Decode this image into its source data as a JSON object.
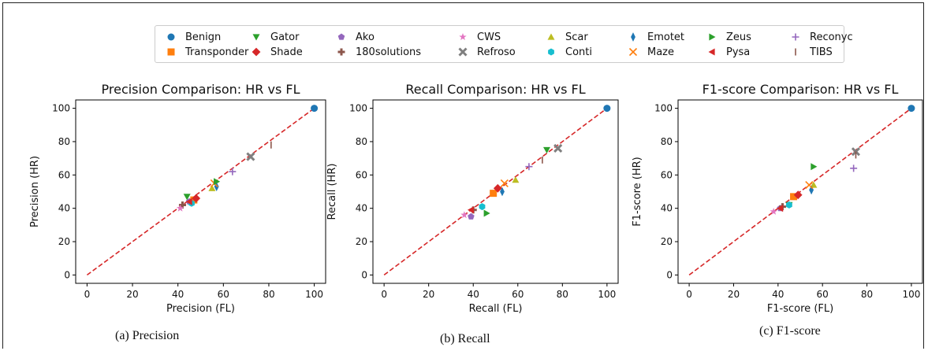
{
  "legend": {
    "items": [
      {
        "name": "Benign",
        "color": "#1f77b4",
        "marker": "circle"
      },
      {
        "name": "Gator",
        "color": "#2ca02c",
        "marker": "triangle-down"
      },
      {
        "name": "Ako",
        "color": "#9467bd",
        "marker": "pentagon"
      },
      {
        "name": "CWS",
        "color": "#e377c2",
        "marker": "star"
      },
      {
        "name": "Scar",
        "color": "#bcbd22",
        "marker": "triangle-up"
      },
      {
        "name": "Emotet",
        "color": "#1f77b4",
        "marker": "thin-diamond"
      },
      {
        "name": "Zeus",
        "color": "#2ca02c",
        "marker": "triangle-right"
      },
      {
        "name": "Reconyc",
        "color": "#9467bd",
        "marker": "plus"
      },
      {
        "name": "Transponder",
        "color": "#ff7f0e",
        "marker": "square"
      },
      {
        "name": "Shade",
        "color": "#d62728",
        "marker": "diamond"
      },
      {
        "name": "180solutions",
        "color": "#8c564b",
        "marker": "plus-filled"
      },
      {
        "name": "Refroso",
        "color": "#7f7f7f",
        "marker": "x-filled"
      },
      {
        "name": "Conti",
        "color": "#17becf",
        "marker": "hexagon"
      },
      {
        "name": "Maze",
        "color": "#ff7f0e",
        "marker": "x"
      },
      {
        "name": "Pysa",
        "color": "#d62728",
        "marker": "triangle-left"
      },
      {
        "name": "TIBS",
        "color": "#8c564b",
        "marker": "vline"
      }
    ]
  },
  "captions": {
    "a": "(a) Precision",
    "b": "(b) Recall",
    "c": "(c) F1-score"
  },
  "chart_data": [
    {
      "type": "scatter",
      "title": "Precision Comparison: HR vs FL",
      "xlabel": "Precision (FL)",
      "ylabel": "Precision (HR)",
      "xlim": [
        -5,
        105
      ],
      "ylim": [
        -5,
        105
      ],
      "ticks": [
        0,
        20,
        40,
        60,
        80,
        100
      ],
      "reference_line": {
        "from": [
          0,
          0
        ],
        "to": [
          100,
          100
        ],
        "color": "#d62728",
        "style": "dashed"
      },
      "points": [
        {
          "series": "Benign",
          "x": 100,
          "y": 100
        },
        {
          "series": "Transponder",
          "x": 47,
          "y": 45
        },
        {
          "series": "Gator",
          "x": 44,
          "y": 47
        },
        {
          "series": "Shade",
          "x": 48,
          "y": 46
        },
        {
          "series": "Ako",
          "x": 45,
          "y": 44
        },
        {
          "series": "180solutions",
          "x": 42,
          "y": 42
        },
        {
          "series": "CWS",
          "x": 41,
          "y": 40
        },
        {
          "series": "Refroso",
          "x": 72,
          "y": 71
        },
        {
          "series": "Scar",
          "x": 55,
          "y": 52
        },
        {
          "series": "Conti",
          "x": 46,
          "y": 43
        },
        {
          "series": "Emotet",
          "x": 57,
          "y": 53
        },
        {
          "series": "Maze",
          "x": 56,
          "y": 55
        },
        {
          "series": "Zeus",
          "x": 57,
          "y": 56
        },
        {
          "series": "Pysa",
          "x": 45,
          "y": 44
        },
        {
          "series": "Reconyc",
          "x": 64,
          "y": 62
        },
        {
          "series": "TIBS",
          "x": 81,
          "y": 78
        }
      ]
    },
    {
      "type": "scatter",
      "title": "Recall Comparison: HR vs FL",
      "xlabel": "Recall (FL)",
      "ylabel": "Recall (HR)",
      "xlim": [
        -5,
        105
      ],
      "ylim": [
        -5,
        105
      ],
      "ticks": [
        0,
        20,
        40,
        60,
        80,
        100
      ],
      "reference_line": {
        "from": [
          0,
          0
        ],
        "to": [
          100,
          100
        ],
        "color": "#d62728",
        "style": "dashed"
      },
      "points": [
        {
          "series": "Benign",
          "x": 100,
          "y": 100
        },
        {
          "series": "Transponder",
          "x": 49,
          "y": 49
        },
        {
          "series": "Gator",
          "x": 73,
          "y": 75
        },
        {
          "series": "Shade",
          "x": 51,
          "y": 52
        },
        {
          "series": "Ako",
          "x": 39,
          "y": 35
        },
        {
          "series": "180solutions",
          "x": 40,
          "y": 39
        },
        {
          "series": "CWS",
          "x": 36,
          "y": 36
        },
        {
          "series": "Refroso",
          "x": 78,
          "y": 76
        },
        {
          "series": "Scar",
          "x": 59,
          "y": 57
        },
        {
          "series": "Conti",
          "x": 44,
          "y": 41
        },
        {
          "series": "Emotet",
          "x": 53,
          "y": 50
        },
        {
          "series": "Maze",
          "x": 54,
          "y": 55
        },
        {
          "series": "Zeus",
          "x": 46,
          "y": 37
        },
        {
          "series": "Pysa",
          "x": 39,
          "y": 39
        },
        {
          "series": "Reconyc",
          "x": 65,
          "y": 65
        },
        {
          "series": "TIBS",
          "x": 71,
          "y": 69
        }
      ]
    },
    {
      "type": "scatter",
      "title": "F1-score Comparison: HR vs FL",
      "xlabel": "F1-score (FL)",
      "ylabel": "F1-score (HR)",
      "xlim": [
        -5,
        105
      ],
      "ylim": [
        -5,
        105
      ],
      "ticks": [
        0,
        20,
        40,
        60,
        80,
        100
      ],
      "reference_line": {
        "from": [
          0,
          0
        ],
        "to": [
          100,
          100
        ],
        "color": "#d62728",
        "style": "dashed"
      },
      "points": [
        {
          "series": "Benign",
          "x": 100,
          "y": 100
        },
        {
          "series": "Transponder",
          "x": 47,
          "y": 47
        },
        {
          "series": "Gator",
          "x": 45,
          "y": 42
        },
        {
          "series": "Shade",
          "x": 49,
          "y": 48
        },
        {
          "series": "Ako",
          "x": 41,
          "y": 40
        },
        {
          "series": "180solutions",
          "x": 42,
          "y": 41
        },
        {
          "series": "CWS",
          "x": 38,
          "y": 38
        },
        {
          "series": "Refroso",
          "x": 75,
          "y": 74
        },
        {
          "series": "Scar",
          "x": 56,
          "y": 54
        },
        {
          "series": "Conti",
          "x": 45,
          "y": 42
        },
        {
          "series": "Emotet",
          "x": 55,
          "y": 51
        },
        {
          "series": "Maze",
          "x": 54,
          "y": 54
        },
        {
          "series": "Zeus",
          "x": 56,
          "y": 65
        },
        {
          "series": "Pysa",
          "x": 41,
          "y": 40
        },
        {
          "series": "Reconyc",
          "x": 74,
          "y": 64
        },
        {
          "series": "TIBS",
          "x": 75,
          "y": 72
        }
      ]
    }
  ]
}
